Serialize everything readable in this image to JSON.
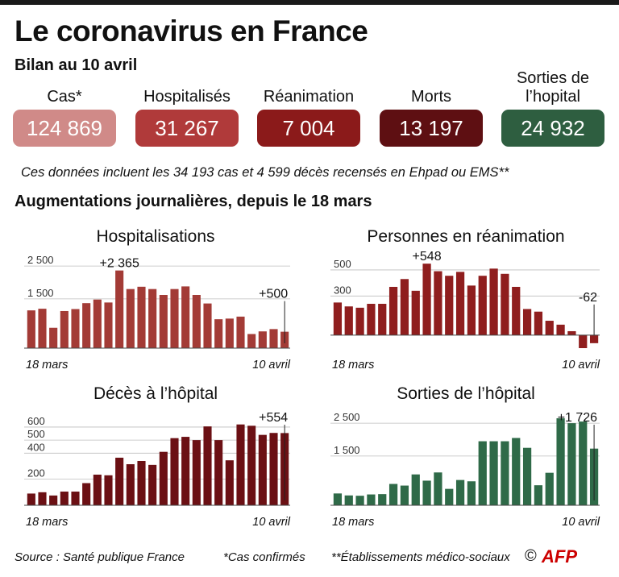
{
  "title": "Le coronavirus en France",
  "subtitle": "Bilan au 10 avril",
  "stats": [
    {
      "label": "Cas*",
      "value": "124 869",
      "color": "#d08a88"
    },
    {
      "label": "Hospitalisés",
      "value": "31 267",
      "color": "#b03a3a"
    },
    {
      "label": "Réanimation",
      "value": "7 004",
      "color": "#8b1a1a"
    },
    {
      "label": "Morts",
      "value": "13 197",
      "color": "#5e0f12"
    },
    {
      "label": "Sorties de l’hopital",
      "value": "24 932",
      "color": "#2e5e40"
    }
  ],
  "note": "Ces données incluent les 34 193 cas et 4 599 décès recensés en Ehpad ou EMS**",
  "section_title": "Augmentations journalières, depuis le 18 mars",
  "footer": {
    "source": "Source : Santé publique France",
    "confirmed": "*Cas confirmés",
    "ems": "**Établissements médico-sociaux",
    "copyright": "©",
    "logo": "AFP"
  },
  "chart_data": [
    {
      "type": "bar",
      "title": "Hospitalisations",
      "color": "#a33b36",
      "x_start": "18 mars",
      "x_end": "10 avril",
      "yticks": [
        1500,
        2500
      ],
      "ytick_labels": [
        "1 500",
        "2 500"
      ],
      "ylim": [
        0,
        2700
      ],
      "values": [
        1150,
        1200,
        620,
        1130,
        1190,
        1370,
        1480,
        1390,
        2365,
        1800,
        1870,
        1800,
        1620,
        1800,
        1880,
        1620,
        1360,
        880,
        900,
        960,
        430,
        510,
        580,
        500
      ],
      "annotations": [
        {
          "index": 8,
          "text": "+2 365"
        },
        {
          "index": 23,
          "text": "+500"
        }
      ]
    },
    {
      "type": "bar",
      "title": "Personnes en réanimation",
      "color": "#8f1e1e",
      "x_start": "18 mars",
      "x_end": "10 avril",
      "yticks": [
        300,
        500
      ],
      "ytick_labels": [
        "300",
        "500"
      ],
      "ylim": [
        -100,
        580
      ],
      "values": [
        250,
        220,
        210,
        240,
        240,
        370,
        430,
        340,
        548,
        490,
        455,
        485,
        380,
        455,
        510,
        470,
        370,
        200,
        180,
        110,
        80,
        30,
        -100,
        -62
      ],
      "annotations": [
        {
          "index": 8,
          "text": "+548"
        },
        {
          "index": 23,
          "text": "-62"
        }
      ]
    },
    {
      "type": "bar",
      "title": "Décès à l’hôpital",
      "color": "#6b1014",
      "x_start": "18 mars",
      "x_end": "10 avril",
      "yticks": [
        200,
        400,
        500,
        600
      ],
      "ytick_labels": [
        "200",
        "400",
        "500",
        "600"
      ],
      "ylim": [
        0,
        680
      ],
      "values": [
        90,
        100,
        75,
        105,
        105,
        170,
        235,
        230,
        365,
        315,
        340,
        310,
        410,
        515,
        525,
        500,
        605,
        500,
        345,
        620,
        610,
        540,
        555,
        554
      ],
      "annotations": [
        {
          "index": 23,
          "text": "+554"
        }
      ]
    },
    {
      "type": "bar",
      "title": "Sorties de l’hôpital",
      "color": "#2f6a48",
      "x_start": "18 mars",
      "x_end": "10 avril",
      "yticks": [
        1500,
        2500
      ],
      "ytick_labels": [
        "1 500",
        "2 500"
      ],
      "ylim": [
        0,
        2700
      ],
      "values": [
        360,
        300,
        290,
        330,
        340,
        650,
        600,
        940,
        750,
        1000,
        500,
        770,
        730,
        1950,
        1950,
        1950,
        2050,
        1750,
        610,
        990,
        2650,
        2500,
        2550,
        1726
      ],
      "annotations": [
        {
          "index": 23,
          "text": "+1 726"
        }
      ]
    }
  ]
}
